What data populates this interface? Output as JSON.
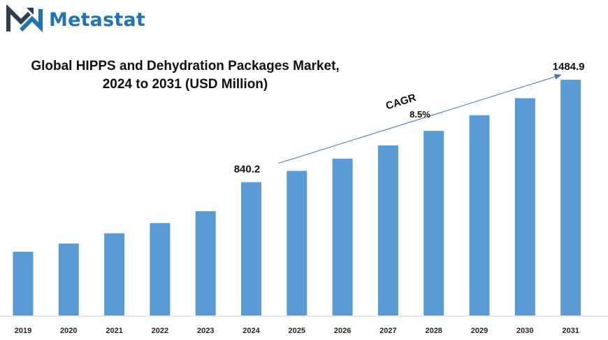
{
  "brand": {
    "name": "Metastat",
    "color": "#1f73b7",
    "dark_color": "#2f3e4f"
  },
  "chart_data": {
    "type": "bar",
    "title_line1": "Global HIPPS and Dehydration Packages Market,",
    "title_line2": "2024 to 2031 (USD Million)",
    "categories": [
      "2019",
      "2020",
      "2021",
      "2022",
      "2023",
      "2024",
      "2025",
      "2026",
      "2027",
      "2028",
      "2029",
      "2030",
      "2031"
    ],
    "values": [
      402,
      453,
      518,
      582,
      657,
      840.2,
      911,
      988,
      1072,
      1163,
      1262,
      1369,
      1484.9
    ],
    "data_labels": [
      {
        "index": 5,
        "text": "840.2"
      },
      {
        "index": 12,
        "text": "1484.9"
      }
    ],
    "annotation": {
      "label": "CAGR",
      "value": "8.5%",
      "from_index": 5,
      "to_index": 12
    },
    "bar_color": "#5b9bd5",
    "ylim": [
      0,
      1500
    ],
    "grid": false,
    "legend": "none"
  }
}
